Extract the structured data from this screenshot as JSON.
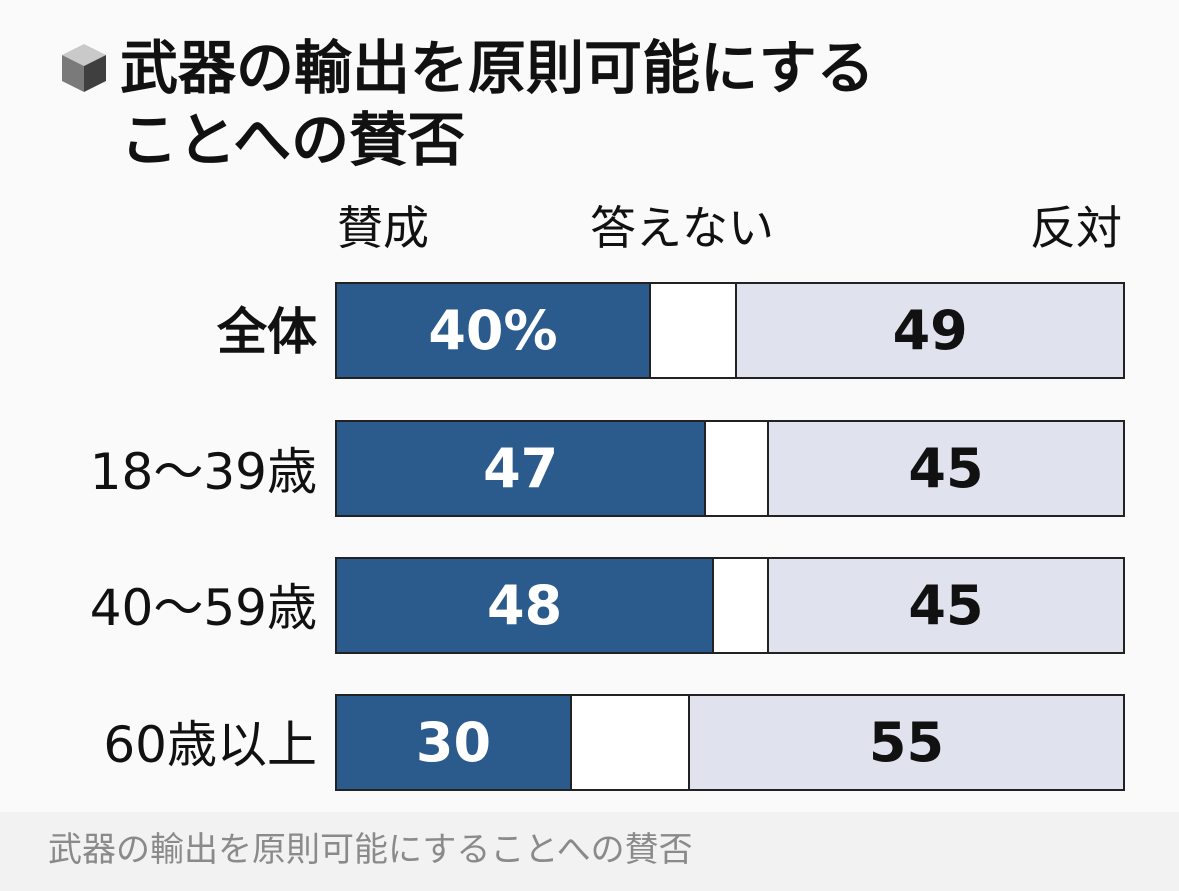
{
  "chart_data": {
    "type": "bar",
    "orientation": "horizontal",
    "stacked": true,
    "percent": true,
    "title": "武器の輸出を原則可能にすることへの賛否",
    "title_lines": [
      "武器の輸出を原則可能にする",
      "ことへの賛否"
    ],
    "categories": [
      "全体",
      "18〜39歳",
      "40〜59歳",
      "60歳以上"
    ],
    "series": [
      {
        "name": "賛成",
        "values": [
          40,
          47,
          48,
          30
        ],
        "color": "#2b5a8c"
      },
      {
        "name": "答えない",
        "values": [
          11,
          8,
          7,
          15
        ],
        "color": "#ffffff"
      },
      {
        "name": "反対",
        "values": [
          49,
          45,
          45,
          55
        ],
        "color": "#e0e3ee"
      }
    ],
    "data_labels": {
      "賛成": [
        "40%",
        "47",
        "48",
        "30"
      ],
      "答えない": [
        "",
        "",
        "",
        ""
      ],
      "反対": [
        "49",
        "45",
        "45",
        "55"
      ]
    },
    "xlim": [
      0,
      100
    ],
    "grid": false,
    "legend": "top"
  },
  "caption": "武器の輸出を原則可能にすることへの賛否",
  "icon": "cube-icon"
}
